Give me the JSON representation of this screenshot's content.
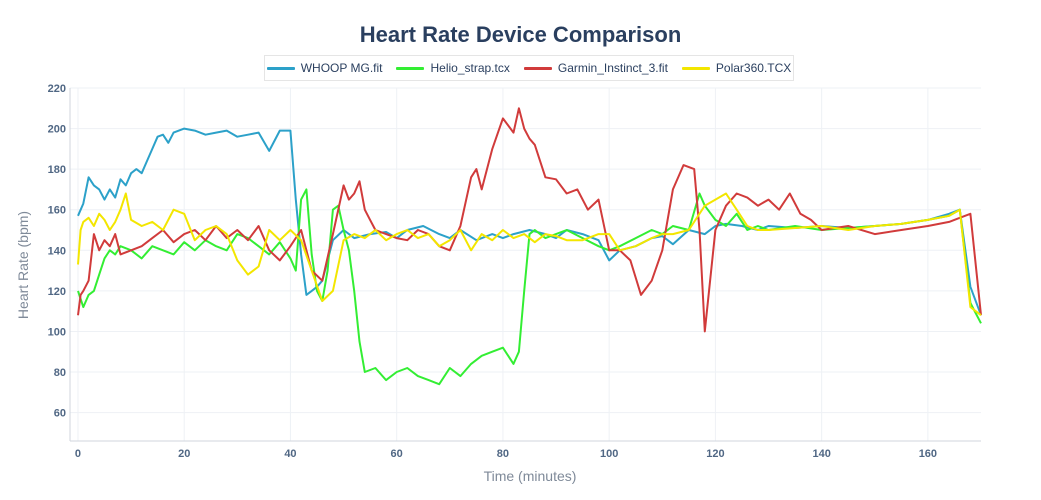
{
  "chart_data": {
    "type": "line",
    "title": "Heart Rate Device Comparison",
    "xlabel": "Time (minutes)",
    "ylabel": "Heart Rate (bpm)",
    "xlim": [
      -1.5,
      170
    ],
    "ylim": [
      46,
      220
    ],
    "xticks": [
      0,
      20,
      40,
      60,
      80,
      100,
      120,
      140,
      160
    ],
    "yticks": [
      60,
      80,
      100,
      120,
      140,
      160,
      180,
      200,
      220
    ],
    "grid": true,
    "legend_position": "top-center",
    "series": [
      {
        "name": "WHOOP MG.fit",
        "color": "#2ca1c9",
        "x": [
          0,
          1,
          2,
          3,
          4,
          5,
          6,
          7,
          8,
          9,
          10,
          11,
          12,
          13,
          14,
          15,
          16,
          17,
          18,
          19,
          20,
          22,
          24,
          26,
          28,
          30,
          32,
          34,
          36,
          38,
          40,
          41,
          42,
          43,
          44,
          45,
          46,
          48,
          50,
          52,
          55,
          58,
          60,
          62,
          65,
          68,
          70,
          72,
          75,
          78,
          80,
          82,
          85,
          88,
          90,
          92,
          95,
          98,
          100,
          102,
          105,
          108,
          110,
          112,
          115,
          118,
          120,
          122,
          125,
          128,
          130,
          135,
          140,
          145,
          150,
          155,
          160,
          164,
          166,
          168,
          170
        ],
        "values": [
          157,
          163,
          176,
          172,
          170,
          165,
          170,
          166,
          175,
          172,
          178,
          180,
          178,
          184,
          190,
          196,
          197,
          193,
          198,
          199,
          200,
          199,
          197,
          198,
          199,
          196,
          197,
          198,
          189,
          199,
          199,
          165,
          138,
          118,
          120,
          122,
          125,
          145,
          150,
          146,
          148,
          149,
          146,
          150,
          152,
          148,
          146,
          150,
          145,
          148,
          146,
          148,
          150,
          148,
          146,
          150,
          148,
          145,
          135,
          140,
          142,
          146,
          147,
          143,
          150,
          148,
          152,
          153,
          152,
          150,
          152,
          151,
          152,
          151,
          152,
          153,
          155,
          158,
          160,
          122,
          108
        ]
      },
      {
        "name": "Helio_strap.tcx",
        "color": "#33ee33",
        "x": [
          0,
          1,
          2,
          3,
          4,
          5,
          6,
          7,
          8,
          10,
          12,
          14,
          16,
          18,
          20,
          22,
          24,
          26,
          28,
          30,
          32,
          34,
          36,
          38,
          40,
          41,
          42,
          43,
          44,
          45,
          46,
          47,
          48,
          49,
          50,
          51,
          52,
          53,
          54,
          56,
          58,
          60,
          62,
          64,
          66,
          68,
          70,
          72,
          74,
          76,
          78,
          80,
          82,
          83,
          84,
          85,
          86,
          88,
          90,
          92,
          95,
          98,
          100,
          102,
          105,
          108,
          110,
          112,
          115,
          117,
          118,
          120,
          122,
          124,
          126,
          128,
          130,
          135,
          140,
          145,
          150,
          155,
          160,
          164,
          166,
          168,
          170
        ],
        "values": [
          120,
          112,
          118,
          120,
          128,
          136,
          140,
          138,
          142,
          140,
          136,
          142,
          140,
          138,
          144,
          140,
          145,
          142,
          140,
          148,
          146,
          142,
          138,
          144,
          136,
          130,
          165,
          170,
          138,
          120,
          115,
          130,
          160,
          162,
          150,
          140,
          120,
          95,
          80,
          82,
          76,
          80,
          82,
          78,
          76,
          74,
          82,
          78,
          84,
          88,
          90,
          92,
          84,
          90,
          120,
          148,
          150,
          146,
          148,
          150,
          146,
          142,
          140,
          142,
          146,
          150,
          148,
          152,
          150,
          168,
          162,
          155,
          152,
          158,
          150,
          152,
          150,
          152,
          150,
          151,
          152,
          153,
          155,
          157,
          160,
          114,
          104
        ]
      },
      {
        "name": "Garmin_Instinct_3.fit",
        "color": "#d13b3b",
        "x": [
          0,
          0.5,
          1,
          2,
          3,
          4,
          5,
          6,
          7,
          8,
          10,
          12,
          14,
          16,
          18,
          20,
          22,
          24,
          26,
          28,
          30,
          32,
          34,
          36,
          38,
          40,
          42,
          44,
          46,
          48,
          50,
          51,
          52,
          53,
          54,
          55,
          56,
          58,
          60,
          62,
          64,
          66,
          68,
          70,
          72,
          74,
          75,
          76,
          78,
          80,
          82,
          83,
          84,
          85,
          86,
          88,
          90,
          92,
          94,
          96,
          98,
          100,
          102,
          104,
          106,
          108,
          110,
          112,
          114,
          116,
          117,
          118,
          120,
          122,
          124,
          126,
          128,
          130,
          132,
          134,
          136,
          138,
          140,
          145,
          150,
          155,
          160,
          164,
          166,
          168,
          170
        ],
        "values": [
          108,
          118,
          120,
          125,
          148,
          140,
          145,
          142,
          148,
          138,
          140,
          142,
          146,
          150,
          144,
          148,
          150,
          145,
          152,
          146,
          150,
          145,
          152,
          140,
          135,
          142,
          150,
          130,
          125,
          148,
          172,
          165,
          168,
          174,
          160,
          155,
          150,
          148,
          146,
          145,
          150,
          148,
          142,
          140,
          152,
          176,
          180,
          170,
          190,
          205,
          198,
          210,
          200,
          195,
          192,
          176,
          175,
          168,
          170,
          160,
          165,
          140,
          140,
          135,
          118,
          125,
          140,
          170,
          182,
          180,
          150,
          100,
          150,
          162,
          168,
          166,
          162,
          165,
          160,
          168,
          158,
          155,
          150,
          152,
          148,
          150,
          152,
          154,
          156,
          158,
          108
        ]
      },
      {
        "name": "Polar360.TCX",
        "color": "#f3e600",
        "x": [
          0,
          0.5,
          1,
          2,
          3,
          4,
          5,
          6,
          7,
          8,
          9,
          10,
          12,
          14,
          16,
          18,
          20,
          22,
          24,
          26,
          28,
          30,
          32,
          34,
          36,
          38,
          40,
          42,
          44,
          46,
          48,
          50,
          52,
          54,
          56,
          58,
          60,
          62,
          64,
          66,
          68,
          70,
          72,
          74,
          76,
          78,
          80,
          82,
          84,
          86,
          88,
          90,
          92,
          95,
          98,
          100,
          102,
          105,
          108,
          110,
          112,
          115,
          118,
          120,
          122,
          124,
          126,
          128,
          130,
          135,
          140,
          145,
          150,
          155,
          160,
          164,
          166,
          168,
          170
        ],
        "values": [
          133,
          150,
          154,
          156,
          152,
          158,
          155,
          150,
          154,
          160,
          168,
          155,
          152,
          154,
          150,
          160,
          158,
          145,
          150,
          152,
          148,
          135,
          128,
          132,
          150,
          145,
          150,
          145,
          130,
          115,
          120,
          145,
          148,
          146,
          150,
          145,
          148,
          150,
          146,
          148,
          142,
          145,
          150,
          140,
          148,
          145,
          150,
          146,
          148,
          144,
          148,
          147,
          145,
          145,
          148,
          148,
          140,
          142,
          146,
          148,
          148,
          150,
          162,
          165,
          168,
          160,
          152,
          150,
          150,
          151,
          152,
          150,
          152,
          153,
          155,
          157,
          160,
          112,
          108
        ]
      }
    ]
  }
}
